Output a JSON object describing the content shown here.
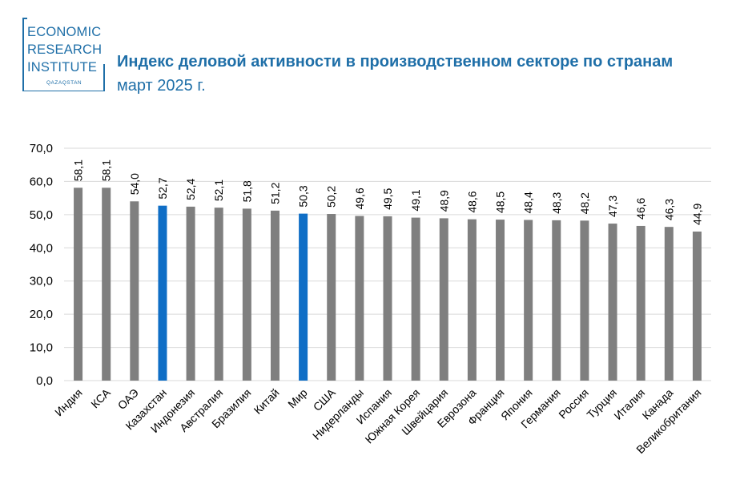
{
  "logo": {
    "line1": "ECONOMIC",
    "line2": "RESEARCH",
    "line3": "INSTITUTE",
    "sub": "QAZAQSTAN"
  },
  "header": {
    "title": "Индекс деловой активности в производственном секторе по странам",
    "subtitle": "март 2025 г."
  },
  "colors": {
    "default_bar": "#7f7f7f",
    "highlight_bar": "#0f6ec6",
    "grid": "#d9d9d9",
    "text": "#000000",
    "brand": "#1f6fa8"
  },
  "chart_data": {
    "type": "bar",
    "title": "Индекс деловой активности в производственном секторе по странам",
    "subtitle": "март 2025 г.",
    "categories": [
      "Индия",
      "КСА",
      "ОАЭ",
      "Казахстан",
      "Индонезия",
      "Австралия",
      "Бразилия",
      "Китай",
      "Мир",
      "США",
      "Нидерланды",
      "Испания",
      "Южная Корея",
      "Швейцария",
      "Еврозона",
      "Франция",
      "Япония",
      "Германия",
      "Россия",
      "Турция",
      "Италия",
      "Канада",
      "Великобритания"
    ],
    "values": [
      58.1,
      58.1,
      54.0,
      52.7,
      52.4,
      52.1,
      51.8,
      51.2,
      50.3,
      50.2,
      49.6,
      49.5,
      49.1,
      48.9,
      48.6,
      48.5,
      48.4,
      48.3,
      48.2,
      47.3,
      46.6,
      46.3,
      44.9
    ],
    "value_labels": [
      "58,1",
      "58,1",
      "54,0",
      "52,7",
      "52,4",
      "52,1",
      "51,8",
      "51,2",
      "50,3",
      "50,2",
      "49,6",
      "49,5",
      "49,1",
      "48,9",
      "48,6",
      "48,5",
      "48,4",
      "48,3",
      "48,2",
      "47,3",
      "46,6",
      "46,3",
      "44,9"
    ],
    "highlighted": [
      "Казахстан",
      "Мир"
    ],
    "ylim": [
      0,
      70
    ],
    "yticks": [
      0,
      10,
      20,
      30,
      40,
      50,
      60,
      70
    ],
    "ytick_labels": [
      "0,0",
      "10,0",
      "20,0",
      "30,0",
      "40,0",
      "50,0",
      "60,0",
      "70,0"
    ],
    "xlabel": "",
    "ylabel": "",
    "grid": true,
    "legend": "none"
  }
}
